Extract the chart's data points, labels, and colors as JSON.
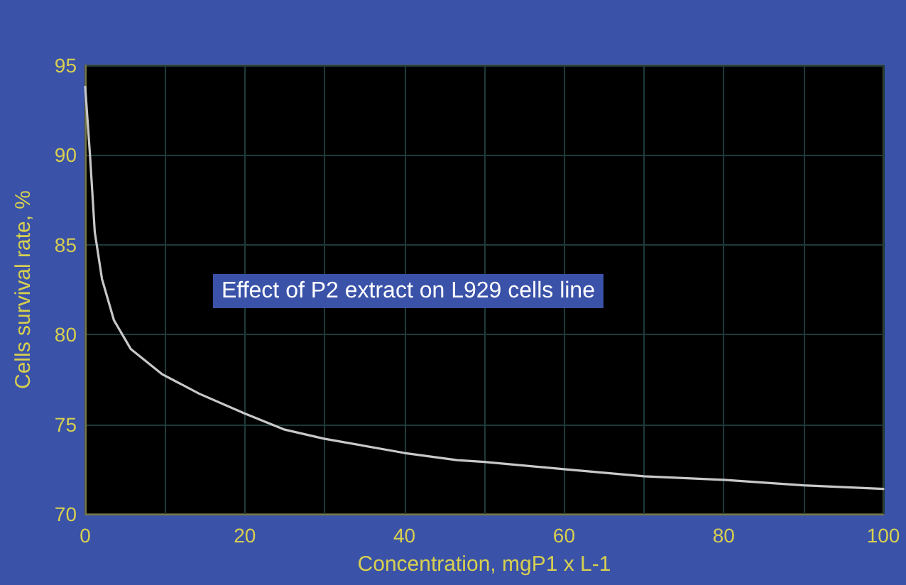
{
  "chart_data": {
    "type": "line",
    "title": "Effect of P2 extract on L929 cells line",
    "xlabel": "Concentration, mgP1 x L-1",
    "ylabel": "Cells survival rate, %",
    "x": [
      0,
      0.6,
      1.2,
      2.1,
      3.6,
      5.7,
      9.6,
      14.3,
      20,
      25,
      29.9,
      40,
      46.6,
      50,
      60,
      70,
      80,
      90,
      100
    ],
    "series": [
      {
        "color": "#c8c8c8",
        "values": [
          93.8,
          90,
          85.7,
          83.1,
          80.8,
          79.2,
          77.8,
          76.7,
          75.6,
          74.7,
          74.2,
          73.4,
          73.0,
          72.9,
          72.5,
          72.1,
          71.9,
          71.6,
          71.4
        ]
      }
    ],
    "xlim": [
      0,
      100
    ],
    "xticks": [
      0,
      {
        "value": 10,
        "label": null
      },
      20,
      {
        "value": 30,
        "label": null
      },
      40,
      {
        "value": 50,
        "label": null
      },
      60,
      {
        "value": 70,
        "label": null
      },
      80,
      {
        "value": 90,
        "label": null
      },
      100
    ],
    "ylim": [
      70,
      95
    ],
    "yticks": [
      70,
      75,
      80,
      85,
      90,
      95
    ],
    "grid": true,
    "marker": "none",
    "line_style": "solid"
  }
}
